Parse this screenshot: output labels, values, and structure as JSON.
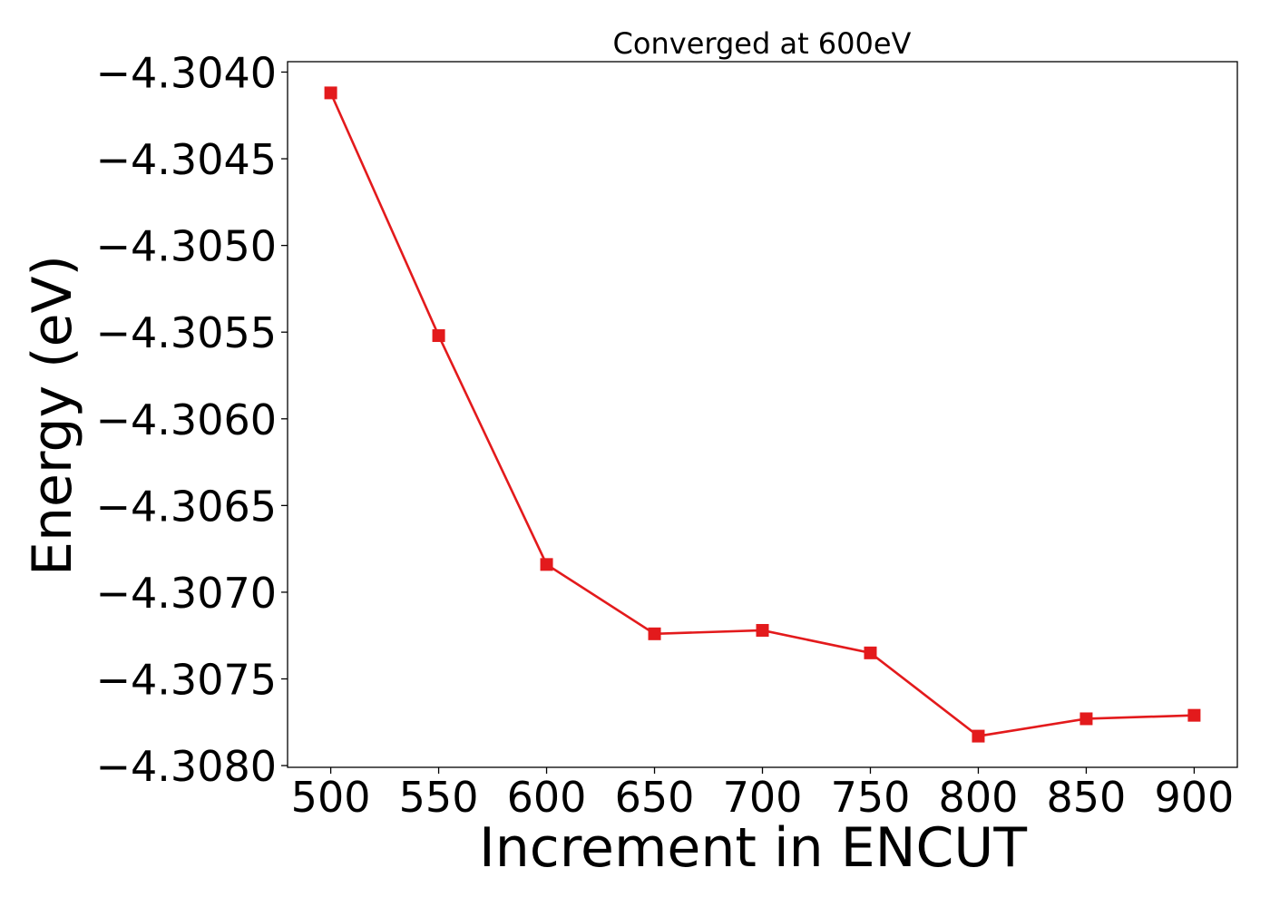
{
  "chart_data": {
    "type": "line",
    "title": "Converged at 600eV",
    "xlabel": "Increment in ENCUT",
    "ylabel": "Energy (eV)",
    "x": [
      500,
      550,
      600,
      650,
      700,
      750,
      800,
      850,
      900
    ],
    "series": [
      {
        "values": [
          -4.30412,
          -4.30552,
          -4.30684,
          -4.30724,
          -4.30722,
          -4.30735,
          -4.30783,
          -4.30773,
          -4.30771
        ],
        "color": "#e31a1c",
        "marker": "square"
      }
    ],
    "xticks": [
      500,
      550,
      600,
      650,
      700,
      750,
      800,
      850,
      900
    ],
    "xtick_labels": [
      "500",
      "550",
      "600",
      "650",
      "700",
      "750",
      "800",
      "850",
      "900"
    ],
    "yticks": [
      -4.304,
      -4.3045,
      -4.305,
      -4.3055,
      -4.306,
      -4.3065,
      -4.307,
      -4.3075,
      -4.308
    ],
    "ytick_labels": [
      "−4.3040",
      "−4.3045",
      "−4.3050",
      "−4.3055",
      "−4.3060",
      "−4.3065",
      "−4.3070",
      "−4.3075",
      "−4.3080"
    ],
    "xlim": [
      480,
      920
    ],
    "ylim": [
      -4.30801,
      -4.30394
    ],
    "grid": false
  }
}
